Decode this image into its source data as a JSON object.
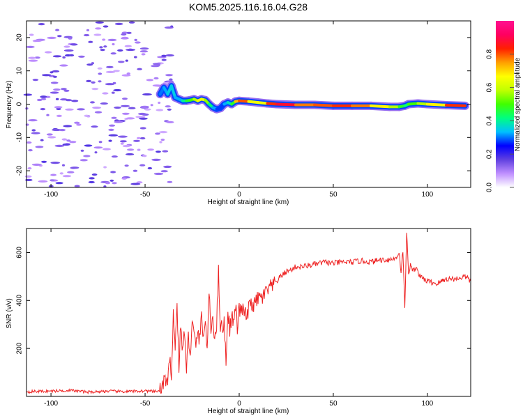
{
  "title": "KOM5.2025.116.16.04.G28",
  "chart_data": [
    {
      "type": "heatmap",
      "xlabel": "Height of straight line (km)",
      "ylabel": "Frequency (Hz)",
      "xlim": [
        -113,
        123
      ],
      "ylim": [
        -25,
        25
      ],
      "xticks": [
        -100,
        -50,
        0,
        50,
        100
      ],
      "yticks": [
        -20,
        -10,
        0,
        10,
        20
      ],
      "xtick_labels": [
        "-100",
        "-50",
        "0",
        "50",
        "100"
      ],
      "ytick_labels": [
        "-20",
        "-10",
        "0",
        "10",
        "20"
      ],
      "colorbar": {
        "label": "Normalized spectral amplitude",
        "range": [
          0,
          1
        ],
        "ticks": [
          0.0,
          0.2,
          0.4,
          0.6,
          0.8
        ],
        "tick_labels": [
          "0.0",
          "0.2",
          "0.4",
          "0.6",
          "0.8"
        ],
        "colors": [
          "#ffffff",
          "#c090ff",
          "#6040e0",
          "#0000ff",
          "#00c0ff",
          "#00ff80",
          "#40ff00",
          "#c0ff00",
          "#ffff00",
          "#ffa000",
          "#ff2000",
          "#ff0060",
          "#ff1090"
        ]
      },
      "ridge": {
        "x": [
          -42,
          -40,
          -38,
          -36,
          -34,
          -32,
          -30,
          -28,
          -26,
          -24,
          -22,
          -20,
          -18,
          -16,
          -14,
          -12,
          -10,
          -8,
          -6,
          -4,
          -2,
          0,
          5,
          10,
          15,
          20,
          30,
          40,
          50,
          60,
          70,
          80,
          85,
          88,
          90,
          95,
          100,
          110,
          120
        ],
        "y": [
          3.0,
          5.0,
          3.0,
          5.5,
          2.0,
          1.5,
          1.0,
          1.0,
          1.2,
          1.5,
          1.0,
          1.5,
          1.2,
          0.0,
          -1.0,
          -1.5,
          -1.2,
          0.0,
          0.5,
          0.0,
          0.8,
          1.0,
          0.8,
          0.5,
          0.2,
          0.0,
          -0.2,
          -0.2,
          -0.5,
          -0.5,
          -0.5,
          -0.8,
          -0.8,
          -0.5,
          0.0,
          0.2,
          0.0,
          -0.3,
          -0.5
        ],
        "amplitude": [
          0.25,
          0.35,
          0.3,
          0.4,
          0.3,
          0.35,
          0.3,
          0.5,
          0.45,
          0.55,
          0.6,
          0.7,
          0.6,
          0.5,
          0.35,
          0.3,
          0.25,
          0.3,
          0.35,
          0.4,
          0.55,
          0.9,
          0.7,
          0.6,
          0.7,
          0.95,
          0.8,
          0.75,
          0.85,
          0.8,
          0.75,
          0.6,
          0.55,
          0.4,
          0.45,
          0.55,
          0.6,
          0.75,
          0.9
        ]
      }
    },
    {
      "type": "line",
      "xlabel": "Height of straight line (km)",
      "ylabel": "SNR (v/v)",
      "xlim": [
        -113,
        123
      ],
      "ylim": [
        0,
        700
      ],
      "xticks": [
        -100,
        -50,
        0,
        50,
        100
      ],
      "yticks": [
        200,
        400,
        600
      ],
      "xtick_labels": [
        "-100",
        "-50",
        "0",
        "50",
        "100"
      ],
      "ytick_labels": [
        "200",
        "400",
        "600"
      ],
      "color": "#ee2222",
      "x": [
        -113,
        -100,
        -90,
        -80,
        -70,
        -60,
        -50,
        -45,
        -41,
        -40,
        -38,
        -37,
        -36,
        -35,
        -34,
        -33,
        -32,
        -31,
        -30,
        -29,
        -28,
        -27,
        -26,
        -25,
        -24,
        -23,
        -22,
        -21,
        -20,
        -19,
        -18,
        -17,
        -16,
        -15,
        -14,
        -13,
        -12,
        -11,
        -10,
        -9,
        -8,
        -7,
        -6,
        -5,
        -4,
        -3,
        -2,
        -1,
        0,
        2,
        4,
        6,
        8,
        10,
        12,
        14,
        16,
        18,
        20,
        22,
        25,
        28,
        30,
        33,
        36,
        40,
        45,
        50,
        55,
        60,
        65,
        70,
        75,
        80,
        83,
        85,
        86,
        87,
        88,
        89,
        90,
        91,
        92,
        94,
        96,
        100,
        105,
        110,
        115,
        120,
        123
      ],
      "y": [
        20,
        22,
        25,
        18,
        22,
        20,
        23,
        20,
        25,
        80,
        40,
        150,
        100,
        350,
        200,
        380,
        130,
        300,
        180,
        280,
        100,
        250,
        180,
        300,
        260,
        200,
        280,
        230,
        330,
        260,
        300,
        210,
        420,
        280,
        330,
        250,
        300,
        520,
        300,
        280,
        310,
        150,
        360,
        280,
        340,
        300,
        380,
        290,
        360,
        360,
        330,
        390,
        380,
        410,
        410,
        430,
        450,
        460,
        480,
        500,
        520,
        530,
        540,
        540,
        545,
        550,
        560,
        555,
        560,
        560,
        565,
        560,
        570,
        570,
        575,
        600,
        520,
        610,
        360,
        690,
        500,
        560,
        520,
        540,
        500,
        480,
        470,
        490,
        490,
        500,
        480
      ]
    }
  ]
}
